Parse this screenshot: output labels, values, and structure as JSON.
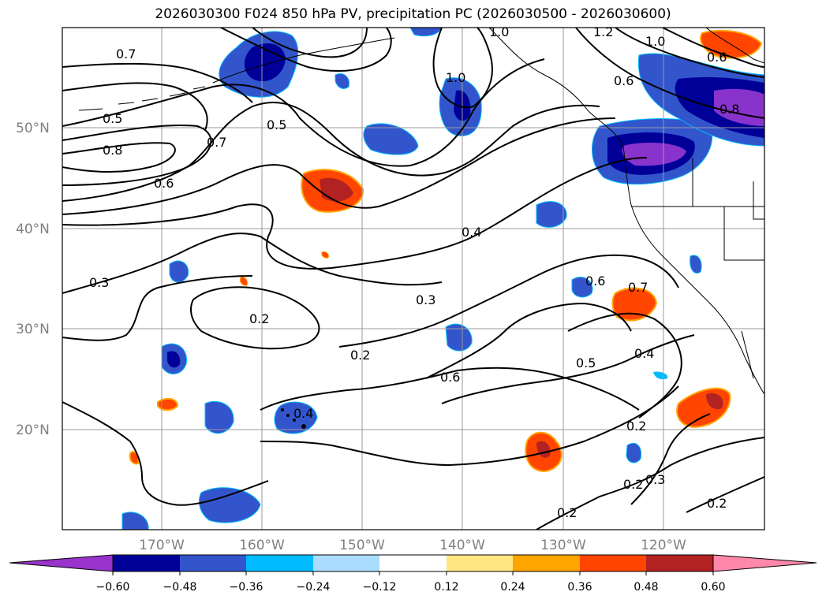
{
  "title": "2026030300 F024 850 hPa PV, precipitation PC (2026030500 - 2026030600)",
  "map": {
    "lat_labels": [
      "50°N",
      "40°N",
      "30°N",
      "20°N"
    ],
    "lon_labels": [
      "170°W",
      "160°W",
      "150°W",
      "140°W",
      "130°W",
      "120°W"
    ]
  },
  "contour_labels": [
    "0.7",
    "0.5",
    "0.8",
    "0.7",
    "0.6",
    "0.5",
    "1.0",
    "1.0",
    "1.2",
    "1.0",
    "0.6",
    "0.6",
    "0.8",
    "0.4",
    "0.3",
    "0.3",
    "0.2",
    "0.2",
    "0.6",
    "0.6",
    "0.7",
    "0.5",
    "0.4",
    "0.4",
    "0.2",
    "0.2",
    "0.3",
    "0.2",
    "0.2"
  ],
  "colorbar": {
    "tick_labels": [
      "−0.60",
      "−0.48",
      "−0.36",
      "−0.24",
      "−0.12",
      "0.12",
      "0.24",
      "0.36",
      "0.48",
      "0.60"
    ],
    "colors": [
      "#9933cc",
      "#000099",
      "#3355cc",
      "#00bbff",
      "#aaddff",
      "#ffffff",
      "#ffe680",
      "#ffa500",
      "#ff4500",
      "#b22222",
      "#ff88aa"
    ]
  },
  "colors": {
    "contour": "#000000",
    "grid": "#999999",
    "coast": "#000000"
  }
}
